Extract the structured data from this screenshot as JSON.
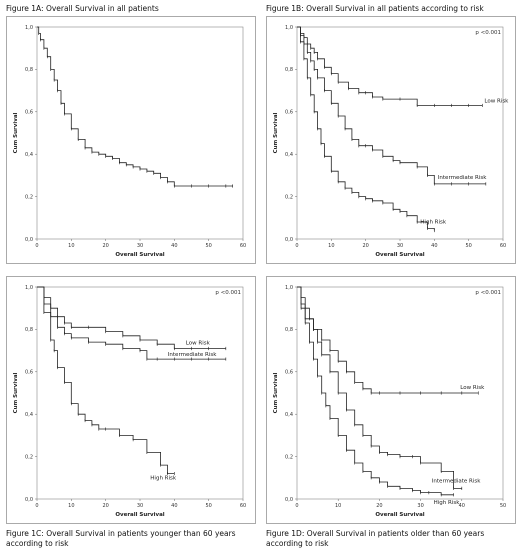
{
  "captions": {
    "a": "Figure 1A: Overall Survival in all patients",
    "b": "Figure 1B: Overall Survival in all patients according to risk",
    "c1": "Figure 1C: Overall Survival in patients younger than 60 years",
    "c2": "according to risk",
    "d1": "Figure 1D: Overall Survival in patients older than 60 years",
    "d2": "according to risk"
  },
  "chart_data": [
    {
      "id": "a",
      "type": "line",
      "title": "Figure 1A: Overall Survival in all patients",
      "xlabel": "Overall Survival",
      "ylabel": "Cum Survival",
      "xlim": [
        0,
        60
      ],
      "ylim": [
        0,
        1
      ],
      "xticks": [
        0,
        10,
        20,
        30,
        40,
        50,
        60
      ],
      "yticks": [
        "0,0",
        "0,2",
        "0,4",
        "0,6",
        "0,8",
        "1,0"
      ],
      "pvalue": "",
      "series": [
        {
          "name": "",
          "x": [
            0,
            0.5,
            1,
            2,
            3,
            4,
            5,
            6,
            7,
            8,
            10,
            12,
            14,
            16,
            18,
            20,
            22,
            24,
            26,
            28,
            30,
            32,
            34,
            36,
            38,
            40,
            45,
            50,
            55,
            57
          ],
          "y": [
            1.0,
            0.97,
            0.94,
            0.9,
            0.86,
            0.8,
            0.75,
            0.7,
            0.64,
            0.59,
            0.52,
            0.47,
            0.43,
            0.41,
            0.4,
            0.39,
            0.38,
            0.36,
            0.35,
            0.34,
            0.33,
            0.32,
            0.31,
            0.29,
            0.27,
            0.25,
            0.25,
            0.25,
            0.25,
            0.25
          ]
        }
      ]
    },
    {
      "id": "b",
      "type": "line",
      "title": "Figure 1B: Overall Survival in all patients according to risk",
      "xlabel": "Overall Survival",
      "ylabel": "Cum Survival",
      "xlim": [
        0,
        60
      ],
      "ylim": [
        0,
        1
      ],
      "xticks": [
        0,
        10,
        20,
        30,
        40,
        50,
        60
      ],
      "yticks": [
        "0,0",
        "0,2",
        "0,4",
        "0,6",
        "0,8",
        "1,0"
      ],
      "pvalue": "p <0.001",
      "series": [
        {
          "name": "Low Risk",
          "x": [
            0,
            1,
            2,
            3,
            4,
            5,
            6,
            8,
            10,
            12,
            15,
            18,
            20,
            22,
            25,
            30,
            35,
            40,
            45,
            50,
            54
          ],
          "y": [
            1.0,
            0.97,
            0.95,
            0.92,
            0.9,
            0.88,
            0.85,
            0.81,
            0.78,
            0.74,
            0.71,
            0.69,
            0.69,
            0.67,
            0.66,
            0.66,
            0.63,
            0.63,
            0.63,
            0.63,
            0.63
          ]
        },
        {
          "name": "Intermediate Risk",
          "x": [
            0,
            1,
            2,
            3,
            4,
            5,
            6,
            8,
            10,
            12,
            14,
            16,
            18,
            20,
            22,
            25,
            28,
            30,
            35,
            38,
            40,
            45,
            50,
            55
          ],
          "y": [
            1.0,
            0.96,
            0.92,
            0.88,
            0.84,
            0.8,
            0.76,
            0.7,
            0.64,
            0.58,
            0.52,
            0.47,
            0.44,
            0.44,
            0.42,
            0.39,
            0.37,
            0.36,
            0.34,
            0.3,
            0.26,
            0.26,
            0.26,
            0.26
          ]
        },
        {
          "name": "High Risk",
          "x": [
            0,
            1,
            2,
            3,
            4,
            5,
            6,
            7,
            8,
            10,
            12,
            14,
            16,
            18,
            20,
            22,
            25,
            28,
            30,
            32,
            35,
            38,
            40
          ],
          "y": [
            1.0,
            0.93,
            0.85,
            0.76,
            0.68,
            0.6,
            0.52,
            0.45,
            0.39,
            0.32,
            0.27,
            0.24,
            0.22,
            0.2,
            0.19,
            0.18,
            0.17,
            0.14,
            0.13,
            0.11,
            0.08,
            0.05,
            0.04
          ]
        }
      ]
    },
    {
      "id": "c",
      "type": "line",
      "title": "Figure 1C: Overall Survival in patients younger than 60 years according to risk",
      "xlabel": "Overall Survival",
      "ylabel": "Cum Survival",
      "xlim": [
        0,
        60
      ],
      "ylim": [
        0,
        1
      ],
      "xticks": [
        0,
        10,
        20,
        30,
        40,
        50,
        60
      ],
      "yticks": [
        "0,0",
        "0,2",
        "0,4",
        "0,6",
        "0,8",
        "1,0"
      ],
      "pvalue": "p <0.001",
      "series": [
        {
          "name": "Low Risk",
          "x": [
            0,
            2,
            4,
            6,
            8,
            10,
            15,
            20,
            25,
            30,
            35,
            40,
            45,
            50,
            55
          ],
          "y": [
            1.0,
            0.95,
            0.9,
            0.86,
            0.83,
            0.81,
            0.81,
            0.79,
            0.77,
            0.75,
            0.73,
            0.71,
            0.71,
            0.71,
            0.71
          ]
        },
        {
          "name": "Intermediate Risk",
          "x": [
            0,
            2,
            4,
            6,
            8,
            10,
            15,
            20,
            25,
            30,
            32,
            35,
            40,
            45,
            50,
            55
          ],
          "y": [
            1.0,
            0.92,
            0.86,
            0.81,
            0.78,
            0.76,
            0.74,
            0.73,
            0.71,
            0.7,
            0.66,
            0.66,
            0.66,
            0.66,
            0.66,
            0.66
          ]
        },
        {
          "name": "High Risk",
          "x": [
            0,
            2,
            4,
            5,
            6,
            8,
            10,
            12,
            14,
            16,
            18,
            20,
            24,
            28,
            32,
            36,
            38,
            40
          ],
          "y": [
            1.0,
            0.88,
            0.75,
            0.7,
            0.62,
            0.55,
            0.45,
            0.4,
            0.37,
            0.35,
            0.33,
            0.33,
            0.3,
            0.28,
            0.22,
            0.16,
            0.12,
            0.12
          ]
        }
      ]
    },
    {
      "id": "d",
      "type": "line",
      "title": "Figure 1D: Overall Survival in patients older than 60 years according to risk",
      "xlabel": "Overall Survival",
      "ylabel": "Cum Survival",
      "xlim": [
        0,
        50
      ],
      "ylim": [
        0,
        1
      ],
      "xticks": [
        0,
        10,
        20,
        30,
        40,
        50
      ],
      "yticks": [
        "0,0",
        "0,2",
        "0,4",
        "0,6",
        "0,8",
        "1,0"
      ],
      "pvalue": "p <0.001",
      "series": [
        {
          "name": "Low Risk",
          "x": [
            0,
            1,
            2,
            4,
            6,
            8,
            10,
            12,
            14,
            16,
            18,
            20,
            25,
            30,
            35,
            40,
            44
          ],
          "y": [
            1.0,
            0.9,
            0.85,
            0.8,
            0.75,
            0.7,
            0.65,
            0.6,
            0.55,
            0.52,
            0.5,
            0.5,
            0.5,
            0.5,
            0.5,
            0.5,
            0.5
          ]
        },
        {
          "name": "Intermediate Risk",
          "x": [
            0,
            1,
            2,
            3,
            4,
            5,
            6,
            8,
            10,
            12,
            14,
            16,
            18,
            20,
            22,
            25,
            28,
            30,
            35,
            38,
            40
          ],
          "y": [
            1.0,
            0.95,
            0.9,
            0.85,
            0.8,
            0.74,
            0.68,
            0.6,
            0.5,
            0.42,
            0.35,
            0.3,
            0.25,
            0.22,
            0.21,
            0.2,
            0.2,
            0.17,
            0.13,
            0.05,
            0.05
          ]
        },
        {
          "name": "High Risk",
          "x": [
            0,
            1,
            2,
            3,
            4,
            5,
            6,
            7,
            8,
            10,
            12,
            14,
            16,
            18,
            20,
            22,
            25,
            28,
            30,
            32,
            35,
            38
          ],
          "y": [
            1.0,
            0.92,
            0.83,
            0.74,
            0.66,
            0.58,
            0.5,
            0.44,
            0.38,
            0.3,
            0.23,
            0.17,
            0.13,
            0.1,
            0.08,
            0.06,
            0.05,
            0.04,
            0.03,
            0.03,
            0.02,
            0.02
          ]
        }
      ]
    }
  ]
}
